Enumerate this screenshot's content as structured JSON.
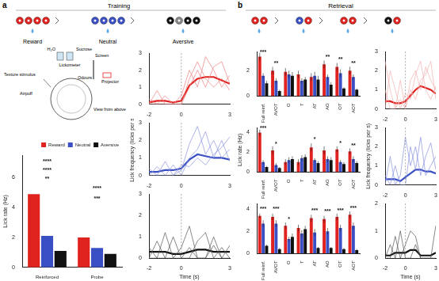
{
  "figure": {
    "panel_a": {
      "label": "a",
      "header": "Training",
      "stimuli": [
        "Reward",
        "Neutral",
        "Aversive"
      ],
      "setup_labels": [
        "H₂O",
        "Sucrose",
        "Lickometer",
        "Screen",
        "Texture stimulus",
        "Odours",
        "Projector",
        "Airpuff",
        "View from above"
      ]
    },
    "panel_b": {
      "label": "b",
      "header": "Retrieval"
    }
  },
  "chart_data": [
    {
      "type": "bar",
      "categories": [
        "Reinforced",
        "Probe"
      ],
      "y_label": "Lick rate (Hz)",
      "ylim": [
        0,
        7.5
      ],
      "yticks": [
        0,
        2,
        4,
        6
      ],
      "grid": false,
      "legend": "top-right",
      "series": [
        {
          "name": "Reward",
          "color": "#e0231f",
          "values": [
            4.9,
            2.0
          ]
        },
        {
          "name": "Neutral",
          "color": "#3b4fc4",
          "values": [
            2.1,
            1.3
          ]
        },
        {
          "name": "Aversive",
          "color": "#111111",
          "values": [
            1.1,
            0.9
          ]
        }
      ],
      "annotations": [
        {
          "category": "Reinforced",
          "y": 7.1,
          "text": "****"
        },
        {
          "category": "Reinforced",
          "y": 6.5,
          "text": "****"
        },
        {
          "category": "Reinforced",
          "y": 5.9,
          "text": "**"
        },
        {
          "category": "Probe",
          "y": 5.3,
          "text": "****"
        },
        {
          "category": "Probe",
          "y": 4.6,
          "text": "***"
        }
      ]
    },
    {
      "type": "line",
      "x": [
        -2,
        -1.5,
        -1,
        -0.5,
        0,
        0.5,
        1,
        1.5,
        2,
        2.5,
        3
      ],
      "xlim": [
        -2,
        3
      ],
      "xticks": [
        -2,
        0,
        3
      ],
      "ylim": [
        0,
        3
      ],
      "yticks": [
        0,
        1,
        2,
        3
      ],
      "grid": false,
      "annotations": [
        {
          "x": 0,
          "line_style": "dashed"
        }
      ],
      "series": [
        {
          "color": "#f08080",
          "line_style": "thin",
          "values": [
            0,
            0,
            0.5,
            0,
            0,
            1.5,
            2.5,
            1.5,
            1.0,
            1.5,
            0.8
          ]
        },
        {
          "color": "#f08080",
          "line_style": "thin",
          "values": [
            0.3,
            0,
            0,
            0,
            0.5,
            2.0,
            1.0,
            2.8,
            2.0,
            1.0,
            1.7
          ]
        },
        {
          "color": "#f08080",
          "line_style": "thin",
          "values": [
            0,
            0.8,
            0,
            0,
            0,
            1.0,
            2.0,
            1.0,
            2.2,
            2.5,
            1.2
          ]
        },
        {
          "color": "#e0231f",
          "line_style": "thick",
          "values": [
            0.1,
            0.2,
            0.2,
            0.1,
            0.2,
            1.1,
            1.5,
            1.6,
            1.6,
            1.4,
            1.2
          ]
        }
      ]
    },
    {
      "type": "line",
      "x": [
        -2,
        -1.5,
        -1,
        -0.5,
        0,
        0.5,
        1,
        1.5,
        2,
        2.5,
        3
      ],
      "xlim": [
        -2,
        3
      ],
      "xticks": [
        -2,
        0,
        3
      ],
      "ylim": [
        0,
        3
      ],
      "yticks": [
        0,
        1,
        2,
        3
      ],
      "grid": false,
      "y_label": "Lick frequency (licks per s)",
      "annotations": [
        {
          "x": 0,
          "line_style": "dashed"
        }
      ],
      "series": [
        {
          "color": "#8a93e0",
          "line_style": "thin",
          "values": [
            0,
            0.5,
            0,
            0,
            0.3,
            1.8,
            2.8,
            1.2,
            2.0,
            1.0,
            1.5
          ]
        },
        {
          "color": "#8a93e0",
          "line_style": "thin",
          "values": [
            0.4,
            0,
            0,
            0.6,
            0,
            1.0,
            1.5,
            2.5,
            1.0,
            2.0,
            0.8
          ]
        },
        {
          "color": "#8a93e0",
          "line_style": "thin",
          "values": [
            0,
            0,
            0.8,
            0,
            0.6,
            0.5,
            1.0,
            0.6,
            1.2,
            1.6,
            2.2
          ]
        },
        {
          "color": "#3b4fc4",
          "line_style": "thick",
          "values": [
            0.2,
            0.2,
            0.3,
            0.3,
            0.4,
            0.9,
            1.2,
            1.1,
            1.0,
            1.0,
            0.9
          ]
        }
      ]
    },
    {
      "type": "line",
      "x": [
        -2,
        -1.5,
        -1,
        -0.5,
        0,
        0.5,
        1,
        1.5,
        2,
        2.5,
        3
      ],
      "xlim": [
        -2,
        3
      ],
      "xticks": [
        -2,
        0,
        3
      ],
      "ylim": [
        0,
        3
      ],
      "yticks": [
        0,
        1,
        2,
        3
      ],
      "grid": false,
      "x_label": "Time (s)",
      "annotations": [
        {
          "x": 0,
          "line_style": "dashed"
        }
      ],
      "series": [
        {
          "color": "#555555",
          "line_style": "thin",
          "values": [
            0,
            0.8,
            0,
            0,
            0.5,
            1.5,
            0,
            0,
            0.6,
            0,
            0
          ]
        },
        {
          "color": "#555555",
          "line_style": "thin",
          "values": [
            0.5,
            0,
            0,
            1.0,
            0,
            0,
            0.8,
            1.2,
            0,
            0.5,
            0
          ]
        },
        {
          "color": "#555555",
          "line_style": "thin",
          "values": [
            0,
            0,
            1.2,
            0,
            0,
            0.5,
            0,
            0,
            1.0,
            0,
            0.6
          ]
        },
        {
          "color": "#111111",
          "line_style": "thick",
          "values": [
            0.3,
            0.3,
            0.3,
            0.2,
            0.2,
            0.3,
            0.4,
            0.4,
            0.3,
            0.3,
            0.3
          ]
        }
      ]
    },
    {
      "type": "bar",
      "categories": [
        "Full reinf.",
        "AVOT",
        "O",
        "T",
        "AT",
        "AO",
        "OT",
        "AOT"
      ],
      "ylim": [
        0,
        3.5
      ],
      "yticks": [
        0,
        2
      ],
      "grid": false,
      "series": [
        {
          "name": "Reward",
          "color": "#e0231f",
          "values": [
            3.1,
            2.0,
            1.9,
            1.7,
            1.5,
            2.5,
            2.3,
            2.0
          ],
          "errors": [
            0.3,
            0.3,
            0.3,
            0.3,
            0.3,
            0.3,
            0.3,
            0.3
          ]
        },
        {
          "name": "Neutral",
          "color": "#3b4fc4",
          "values": [
            1.6,
            1.2,
            1.7,
            1.2,
            1.6,
            1.5,
            1.8,
            1.5
          ],
          "errors": [
            0.2,
            0.2,
            0.3,
            0.2,
            0.3,
            0.2,
            0.3,
            0.2
          ]
        },
        {
          "name": "Aversive",
          "color": "#111111",
          "values": [
            1.0,
            0.4,
            1.6,
            1.3,
            1.3,
            0.9,
            0.6,
            0.5
          ],
          "errors": [
            0.2,
            0.1,
            0.3,
            0.2,
            0.3,
            0.2,
            0.1,
            0.1
          ]
        }
      ],
      "annotations": [
        {
          "category": "Full reinf.",
          "y": 3.45,
          "text": "***"
        },
        {
          "category": "AVOT",
          "y": 2.6,
          "text": "**"
        },
        {
          "category": "AO",
          "y": 3.1,
          "text": "**"
        },
        {
          "category": "OT",
          "y": 2.9,
          "text": "**"
        },
        {
          "category": "AOT",
          "y": 2.6,
          "text": "**"
        }
      ]
    },
    {
      "type": "bar",
      "categories": [
        "Full reinf.",
        "AVOT",
        "O",
        "T",
        "AT",
        "AO",
        "OT",
        "AOT"
      ],
      "ylim": [
        0,
        4.5
      ],
      "yticks": [
        0,
        2,
        4
      ],
      "grid": false,
      "y_label": "Lick rate (Hz)",
      "series": [
        {
          "name": "Reward",
          "color": "#e0231f",
          "values": [
            4.0,
            2.2,
            1.0,
            1.0,
            2.5,
            2.2,
            2.3,
            2.1
          ],
          "errors": [
            0.3,
            0.4,
            0.3,
            0.3,
            0.4,
            0.4,
            0.3,
            0.3
          ]
        },
        {
          "name": "Neutral",
          "color": "#3b4fc4",
          "values": [
            1.0,
            0.7,
            1.2,
            1.4,
            1.2,
            1.3,
            1.0,
            1.3
          ],
          "errors": [
            0.2,
            0.2,
            0.3,
            0.3,
            0.2,
            0.3,
            0.2,
            0.3
          ]
        },
        {
          "name": "Aversive",
          "color": "#111111",
          "values": [
            0.5,
            0.4,
            1.3,
            1.5,
            0.9,
            1.2,
            0.8,
            0.9
          ],
          "errors": [
            0.1,
            0.1,
            0.3,
            0.3,
            0.2,
            0.3,
            0.2,
            0.2
          ]
        }
      ],
      "annotations": [
        {
          "category": "Full reinf.",
          "y": 4.4,
          "text": "***"
        },
        {
          "category": "AVOT",
          "y": 2.8,
          "text": "*"
        },
        {
          "category": "AT",
          "y": 3.3,
          "text": "*"
        },
        {
          "category": "OT",
          "y": 2.9,
          "text": "*"
        },
        {
          "category": "AOT",
          "y": 2.7,
          "text": "**"
        }
      ]
    },
    {
      "type": "bar",
      "categories": [
        "Full reinf.",
        "AVOT",
        "O",
        "T",
        "AT",
        "AO",
        "OT",
        "AOT"
      ],
      "ylim": [
        0,
        4.5
      ],
      "yticks": [
        0,
        2,
        4
      ],
      "grid": false,
      "series": [
        {
          "name": "Reward",
          "color": "#e0231f",
          "values": [
            3.4,
            3.3,
            2.5,
            2.3,
            3.2,
            3.1,
            3.3,
            3.5
          ],
          "errors": [
            0.2,
            0.3,
            0.3,
            0.3,
            0.3,
            0.3,
            0.3,
            0.3
          ]
        },
        {
          "name": "Neutral",
          "color": "#3b4fc4",
          "values": [
            2.7,
            2.7,
            1.3,
            1.8,
            1.9,
            2.0,
            2.3,
            2.5
          ],
          "errors": [
            0.3,
            0.3,
            0.2,
            0.3,
            0.3,
            0.3,
            0.3,
            0.3
          ]
        },
        {
          "name": "Aversive",
          "color": "#111111",
          "values": [
            0.7,
            0.4,
            1.5,
            2.2,
            0.5,
            0.5,
            0.4,
            0.3
          ],
          "errors": [
            0.1,
            0.1,
            0.3,
            0.3,
            0.1,
            0.1,
            0.1,
            0.1
          ]
        }
      ],
      "annotations": [
        {
          "category": "Full reinf.",
          "y": 4.0,
          "text": "***"
        },
        {
          "category": "AVOT",
          "y": 4.0,
          "text": "***"
        },
        {
          "category": "O",
          "y": 3.1,
          "text": "*"
        },
        {
          "category": "AT",
          "y": 3.9,
          "text": "***"
        },
        {
          "category": "AO",
          "y": 3.8,
          "text": "***"
        },
        {
          "category": "OT",
          "y": 3.9,
          "text": "***"
        },
        {
          "category": "AOT",
          "y": 4.1,
          "text": "***"
        }
      ]
    },
    {
      "type": "line",
      "x": [
        -2,
        -1.5,
        -1,
        -0.5,
        0,
        0.5,
        1,
        1.5,
        2,
        2.5,
        3
      ],
      "xlim": [
        -2,
        3
      ],
      "xticks": [
        -2,
        0,
        3
      ],
      "ylim": [
        0,
        3
      ],
      "yticks": [
        0,
        1,
        2,
        3
      ],
      "grid": false,
      "annotations": [
        {
          "x": 0,
          "line_style": "dashed"
        }
      ],
      "series": [
        {
          "color": "#f4b0b0",
          "line_style": "thin",
          "values": [
            2.5,
            1.0,
            0,
            0.5,
            0,
            1.5,
            2.0,
            1.0,
            2.2,
            1.5,
            1.0
          ]
        },
        {
          "color": "#f4b0b0",
          "line_style": "thin",
          "values": [
            0,
            2.0,
            1.0,
            0,
            0.8,
            0.5,
            1.8,
            2.5,
            1.0,
            0.5,
            1.2
          ]
        },
        {
          "color": "#f4b0b0",
          "line_style": "thin",
          "values": [
            1.0,
            0,
            0,
            1.5,
            0,
            1.0,
            0.5,
            1.5,
            1.8,
            2.5,
            0.5
          ]
        },
        {
          "color": "#e0231f",
          "line_style": "thick",
          "values": [
            0.4,
            0.4,
            0.3,
            0.3,
            0.4,
            0.7,
            1.0,
            1.2,
            1.1,
            1.0,
            0.8
          ]
        }
      ]
    },
    {
      "type": "line",
      "x": [
        -2,
        -1.5,
        -1,
        -0.5,
        0,
        0.5,
        1,
        1.5,
        2,
        2.5,
        3
      ],
      "xlim": [
        -2,
        3
      ],
      "xticks": [
        -2,
        0,
        3
      ],
      "ylim": [
        0,
        3
      ],
      "yticks": [
        0,
        1,
        2,
        3
      ],
      "grid": false,
      "y_label": "Lick frequency (licks per s)",
      "annotations": [
        {
          "x": 0,
          "line_style": "dashed"
        }
      ],
      "series": [
        {
          "color": "#8a93e0",
          "line_style": "thin",
          "values": [
            0,
            1.5,
            0,
            0.5,
            2.5,
            1.0,
            2.0,
            0.5,
            1.5,
            2.2,
            0.8
          ]
        },
        {
          "color": "#8a93e0",
          "line_style": "thin",
          "values": [
            0.5,
            0,
            1.0,
            0,
            0,
            2.0,
            0.8,
            2.5,
            0.5,
            1.0,
            1.5
          ]
        },
        {
          "color": "#3b4fc4",
          "line_style": "thick",
          "values": [
            0.3,
            0.3,
            0.3,
            0.2,
            0.4,
            0.6,
            0.8,
            0.8,
            0.7,
            0.7,
            0.6
          ]
        }
      ]
    },
    {
      "type": "line",
      "x": [
        -2,
        -1.5,
        -1,
        -0.5,
        0,
        0.5,
        1,
        1.5,
        2,
        2.5,
        3
      ],
      "xlim": [
        -2,
        3
      ],
      "xticks": [
        -2,
        0,
        3
      ],
      "ylim": [
        0,
        2
      ],
      "yticks": [
        0,
        1,
        2
      ],
      "grid": false,
      "x_label": "Time (s)",
      "annotations": [
        {
          "x": 0,
          "line_style": "dashed"
        }
      ],
      "series": [
        {
          "color": "#555555",
          "line_style": "thin",
          "values": [
            0,
            0,
            0.8,
            0,
            0.5,
            1.0,
            0.8,
            0,
            0,
            0,
            1.2
          ]
        },
        {
          "color": "#555555",
          "line_style": "thin",
          "values": [
            0,
            0.5,
            0,
            1.0,
            0,
            0,
            0.5,
            0,
            0,
            0,
            0
          ]
        },
        {
          "color": "#111111",
          "line_style": "thick",
          "values": [
            0.1,
            0.1,
            0.2,
            0.2,
            0.2,
            0.3,
            0.3,
            0.1,
            0.1,
            0.1,
            0.2
          ]
        }
      ]
    }
  ]
}
